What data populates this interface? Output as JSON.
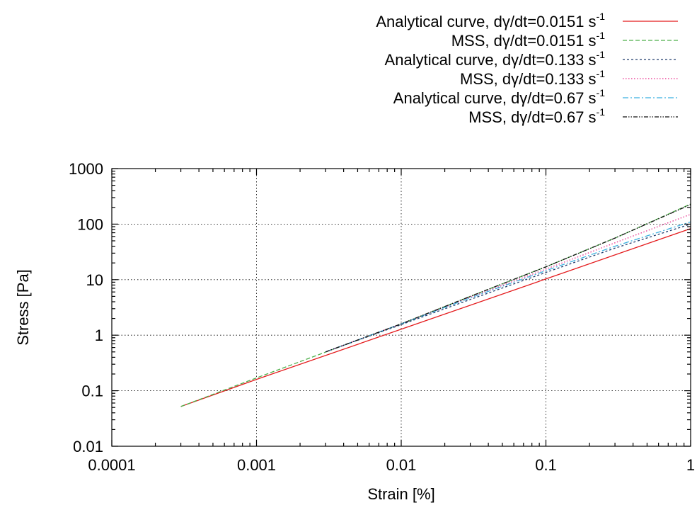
{
  "chart_data": {
    "type": "line",
    "xlabel": "Strain [%]",
    "ylabel": "Stress [Pa]",
    "xscale": "log",
    "yscale": "log",
    "xlim": [
      0.0001,
      1
    ],
    "ylim": [
      0.01,
      1000
    ],
    "grid": true,
    "legend_position": "top-right, above plot",
    "xticks": [
      "0.0001",
      "0.001",
      "0.01",
      "0.1",
      "1"
    ],
    "yticks": [
      "0.01",
      "0.1",
      "1",
      "10",
      "100",
      "1000"
    ],
    "series": [
      {
        "name": "Analytical curve, dγ/dt=0.0151 s",
        "name_sup": "-1",
        "color": "#e41a1c",
        "dash": "",
        "x": [
          0.0003,
          0.001,
          0.01,
          0.1,
          1
        ],
        "y": [
          0.052,
          0.16,
          1.28,
          10.3,
          83
        ]
      },
      {
        "name": "MSS, dγ/dt=0.0151 s",
        "name_sup": "-1",
        "color": "#4daf4a",
        "dash": "6 3",
        "x": [
          0.0003,
          0.001,
          0.01,
          0.03,
          0.1,
          0.3,
          1
        ],
        "y": [
          0.052,
          0.17,
          1.6,
          5.0,
          17,
          56,
          230
        ]
      },
      {
        "name": "Analytical curve, dγ/dt=0.133 s",
        "name_sup": "-1",
        "color": "#1f3a6b",
        "dash": "3 3",
        "x": [
          0.003,
          0.01,
          0.03,
          0.1,
          0.3,
          1
        ],
        "y": [
          0.5,
          1.55,
          4.4,
          13.5,
          37,
          100
        ]
      },
      {
        "name": "MSS, dγ/dt=0.133 s",
        "name_sup": "-1",
        "color": "#e7298a",
        "dash": "1.5 2.5",
        "x": [
          0.003,
          0.01,
          0.03,
          0.1,
          0.3,
          1
        ],
        "y": [
          0.5,
          1.6,
          4.8,
          15.5,
          46,
          150
        ]
      },
      {
        "name": "Analytical curve, dγ/dt=0.67 s",
        "name_sup": "-1",
        "color": "#3ab0e0",
        "dash": "8 3 2 3",
        "x": [
          0.003,
          0.01,
          0.03,
          0.1,
          0.3,
          1
        ],
        "y": [
          0.5,
          1.6,
          4.7,
          14.5,
          40,
          110
        ]
      },
      {
        "name": "MSS, dγ/dt=0.67 s",
        "name_sup": "-1",
        "color": "#111111",
        "dash": "6 2 1.5 2 1.5 2",
        "x": [
          0.003,
          0.01,
          0.03,
          0.1,
          0.3,
          1
        ],
        "y": [
          0.5,
          1.6,
          5.0,
          17,
          56,
          225
        ]
      }
    ]
  }
}
